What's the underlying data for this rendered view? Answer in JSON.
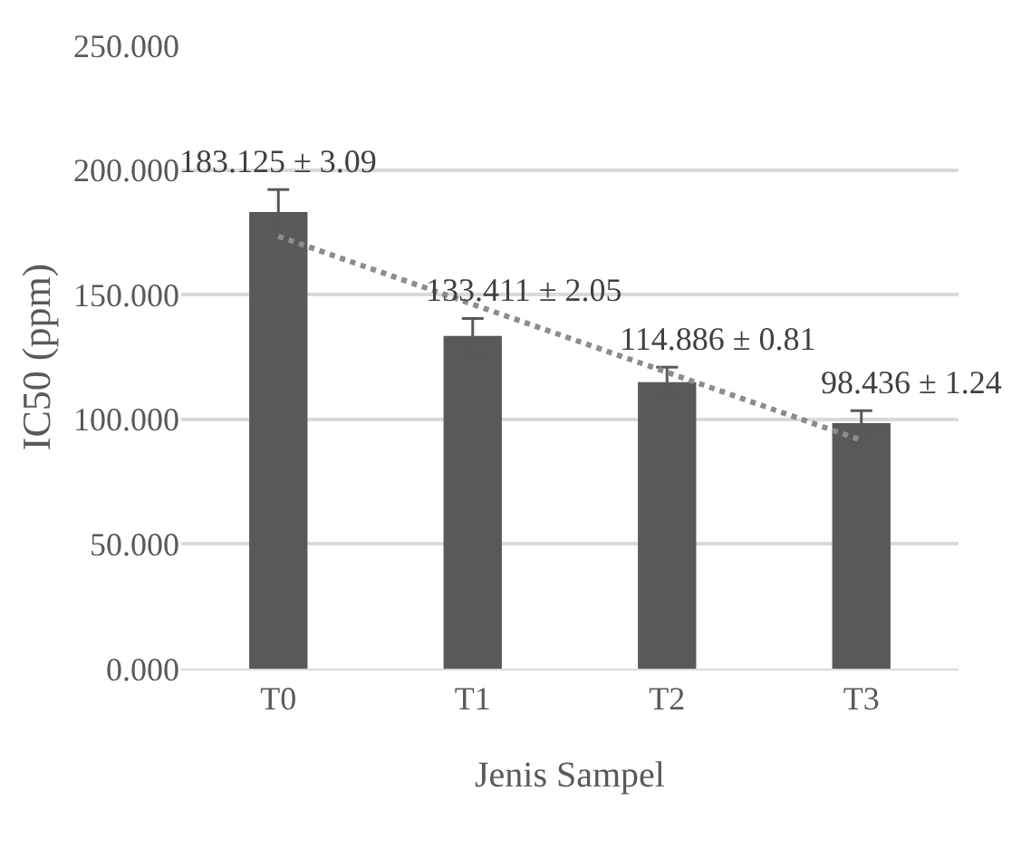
{
  "chart_data": {
    "type": "bar",
    "xlabel": "Jenis Sampel",
    "ylabel": "IC50 (ppm)",
    "categories": [
      "T0",
      "T1",
      "T2",
      "T3"
    ],
    "series": [
      {
        "color": "#595959",
        "values": [
          183.125,
          133.411,
          114.886,
          98.436
        ],
        "errors": [
          9,
          7,
          6,
          5
        ],
        "value_labels": [
          "183.125 ± 3.09",
          "133.411 ± 2.05",
          "114.886 ± 0.81",
          "98.436 ± 1.24"
        ]
      },
      {
        "type": "line",
        "color": "#8c8c8c",
        "x": [
          "T0",
          "T3"
        ],
        "values": [
          173.4,
          91.6
        ],
        "line_style": "dotted",
        "marker": "none"
      }
    ],
    "ylim": [
      0,
      250
    ],
    "yticks": [
      {
        "value": 0,
        "label": "0.000"
      },
      {
        "value": 50,
        "label": "50.000"
      },
      {
        "value": 100,
        "label": "100.000"
      },
      {
        "value": 150,
        "label": "150.000"
      },
      {
        "value": 200,
        "label": "200.000"
      },
      {
        "value": 250,
        "label": "250.000"
      }
    ],
    "grid": "y",
    "legend": false
  }
}
